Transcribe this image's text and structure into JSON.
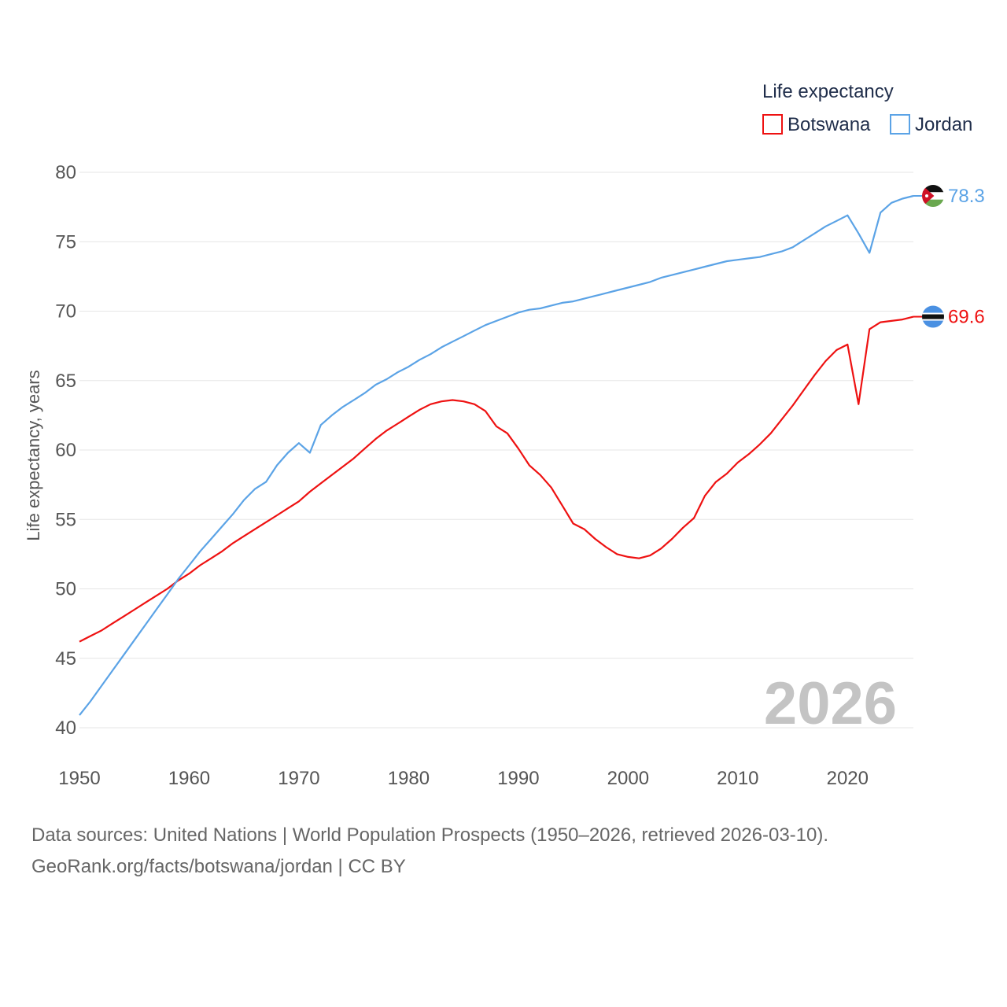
{
  "chart_data": {
    "type": "line",
    "title": "Life expectancy",
    "ylabel": "Life expectancy, years",
    "xlabel": "",
    "xlim": [
      1950,
      2026
    ],
    "ylim": [
      40,
      80
    ],
    "xticks": [
      1950,
      1960,
      1970,
      1980,
      1990,
      2000,
      2010,
      2020
    ],
    "yticks": [
      40,
      45,
      50,
      55,
      60,
      65,
      70,
      75,
      80
    ],
    "grid": true,
    "legend_position": "top-right",
    "current_year_label": "2026",
    "x": [
      1950,
      1951,
      1952,
      1953,
      1954,
      1955,
      1956,
      1957,
      1958,
      1959,
      1960,
      1961,
      1962,
      1963,
      1964,
      1965,
      1966,
      1967,
      1968,
      1969,
      1970,
      1971,
      1972,
      1973,
      1974,
      1975,
      1976,
      1977,
      1978,
      1979,
      1980,
      1981,
      1982,
      1983,
      1984,
      1985,
      1986,
      1987,
      1988,
      1989,
      1990,
      1991,
      1992,
      1993,
      1994,
      1995,
      1996,
      1997,
      1998,
      1999,
      2000,
      2001,
      2002,
      2003,
      2004,
      2005,
      2006,
      2007,
      2008,
      2009,
      2010,
      2011,
      2012,
      2013,
      2014,
      2015,
      2016,
      2017,
      2018,
      2019,
      2020,
      2021,
      2022,
      2023,
      2024,
      2025,
      2026
    ],
    "series": [
      {
        "name": "Botswana",
        "color": "#ee1111",
        "end_label": "69.6",
        "flag": "botswana-flag-icon",
        "values": [
          46.2,
          46.6,
          47.0,
          47.5,
          48.0,
          48.5,
          49.0,
          49.5,
          50.0,
          50.6,
          51.1,
          51.7,
          52.2,
          52.7,
          53.3,
          53.8,
          54.3,
          54.8,
          55.3,
          55.8,
          56.3,
          57.0,
          57.6,
          58.2,
          58.8,
          59.4,
          60.1,
          60.8,
          61.4,
          61.9,
          62.4,
          62.9,
          63.3,
          63.5,
          63.6,
          63.5,
          63.3,
          62.8,
          61.7,
          61.2,
          60.1,
          58.9,
          58.2,
          57.3,
          56.0,
          54.7,
          54.3,
          53.6,
          53.0,
          52.5,
          52.3,
          52.2,
          52.4,
          52.9,
          53.6,
          54.4,
          55.1,
          56.7,
          57.7,
          58.3,
          59.1,
          59.7,
          60.4,
          61.2,
          62.2,
          63.2,
          64.3,
          65.4,
          66.4,
          67.2,
          67.6,
          63.3,
          68.7,
          69.2,
          69.3,
          69.4,
          69.6
        ]
      },
      {
        "name": "Jordan",
        "color": "#5ba3e6",
        "end_label": "78.3",
        "flag": "jordan-flag-icon",
        "values": [
          40.9,
          41.9,
          43.0,
          44.1,
          45.2,
          46.3,
          47.4,
          48.5,
          49.6,
          50.7,
          51.7,
          52.7,
          53.6,
          54.5,
          55.4,
          56.4,
          57.2,
          57.7,
          58.9,
          59.8,
          60.5,
          59.8,
          61.8,
          62.5,
          63.1,
          63.6,
          64.1,
          64.7,
          65.1,
          65.6,
          66.0,
          66.5,
          66.9,
          67.4,
          67.8,
          68.2,
          68.6,
          69.0,
          69.3,
          69.6,
          69.9,
          70.1,
          70.2,
          70.4,
          70.6,
          70.7,
          70.9,
          71.1,
          71.3,
          71.5,
          71.7,
          71.9,
          72.1,
          72.4,
          72.6,
          72.8,
          73.0,
          73.2,
          73.4,
          73.6,
          73.7,
          73.8,
          73.9,
          74.1,
          74.3,
          74.6,
          75.1,
          75.6,
          76.1,
          76.5,
          76.9,
          75.6,
          74.2,
          77.1,
          77.8,
          78.1,
          78.3
        ]
      }
    ]
  },
  "footer": {
    "line1": "Data sources: United Nations | World Population Prospects (1950–2026, retrieved 2026-03-10).",
    "line2": "GeoRank.org/facts/botswana/jordan | CC BY"
  }
}
